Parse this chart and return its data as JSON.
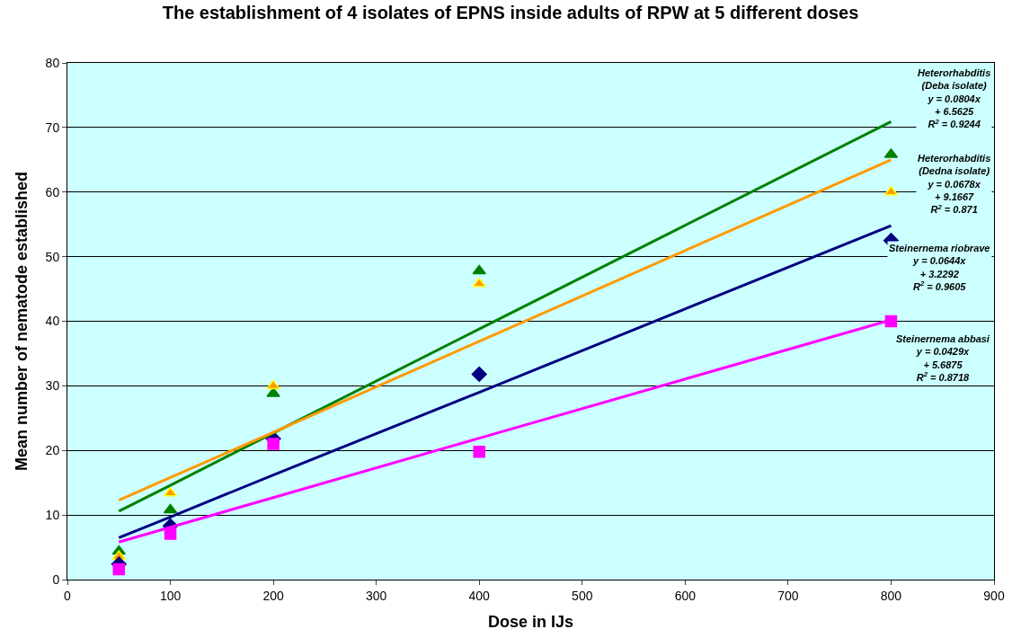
{
  "chart_data": {
    "type": "scatter",
    "title": "The establishment of 4 isolates of EPNS inside adults of RPW at 5 different doses",
    "xlabel": "Dose in IJs",
    "ylabel": "Mean number of nematode established",
    "x": [
      50,
      100,
      200,
      400,
      800
    ],
    "series": [
      {
        "color": "#008000",
        "marker": "triangle",
        "values": [
          4.4,
          10.8,
          28.8,
          47.8,
          65.8
        ]
      },
      {
        "color": "#ff9900",
        "marker": "triangle",
        "values": [
          3.6,
          13.4,
          30,
          45.8,
          60
        ]
      },
      {
        "color": "#000080",
        "marker": "diamond",
        "values": [
          2.4,
          8.3,
          21.8,
          31.8,
          52.5
        ]
      },
      {
        "color": "#ff00ff",
        "marker": "square",
        "values": [
          1.6,
          7.1,
          21,
          19.8,
          40
        ]
      },
      {
        "type": "line",
        "color": "#008000",
        "values": [
          10.6,
          14.6,
          22.7,
          38.8,
          70.9
        ]
      },
      {
        "type": "line",
        "color": "#ff9900",
        "values": [
          12.3,
          15.8,
          22.8,
          36.9,
          65
        ]
      },
      {
        "type": "line",
        "color": "#000080",
        "values": [
          6.5,
          9.7,
          16.2,
          29.0,
          54.8
        ]
      },
      {
        "type": "line",
        "color": "#ff00ff",
        "values": [
          5.8,
          8.1,
          12.7,
          21.9,
          40.2
        ]
      }
    ],
    "annotations": [
      "Heterorhabditis (Deba isolate)\ny = 0.0804x + 6.5625\nR$^{2}$ = 0.9244",
      "Heterorhabditis (Dedna isolate)\ny = 0.0678x + 9.1667\nR$^{2}$ = 0.871",
      "Steinernema riobrave\ny = 0.0644x + 3.2292\nR$^{2}$ = 0.9605",
      "Steinernema abbasi\ny = 0.0429x + 5.6875\nR$^{2}$ = 0.8718"
    ],
    "xlim": [
      0,
      900
    ],
    "xticks": [
      0,
      100,
      200,
      300,
      400,
      500,
      600,
      700,
      800,
      900
    ],
    "ylim": [
      0,
      80
    ],
    "yticks": [
      0,
      10,
      20,
      30,
      40,
      50,
      60,
      70,
      80
    ],
    "grid": "y",
    "legend": false
  }
}
